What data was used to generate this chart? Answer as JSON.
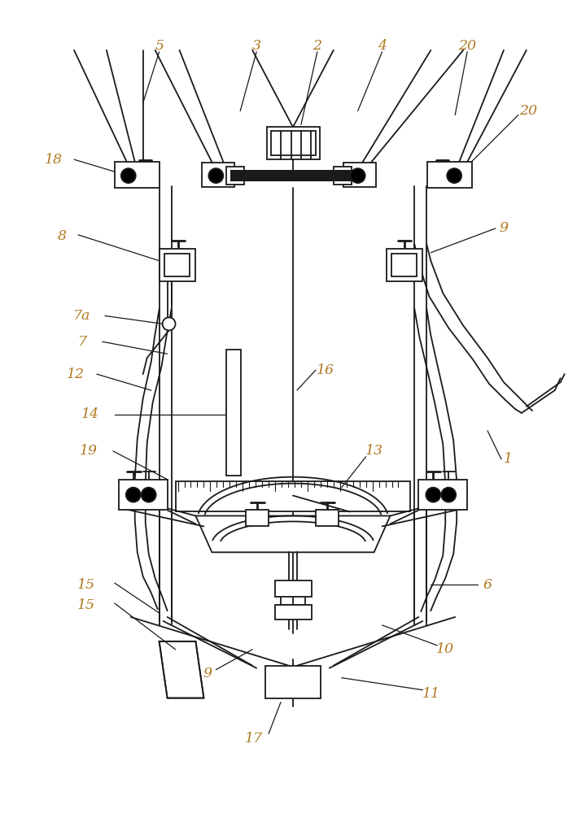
{
  "bg_color": "#ffffff",
  "line_color": "#1a1a1a",
  "label_color": "#b07820",
  "figsize": [
    7.09,
    10.0
  ],
  "dpi": 100
}
